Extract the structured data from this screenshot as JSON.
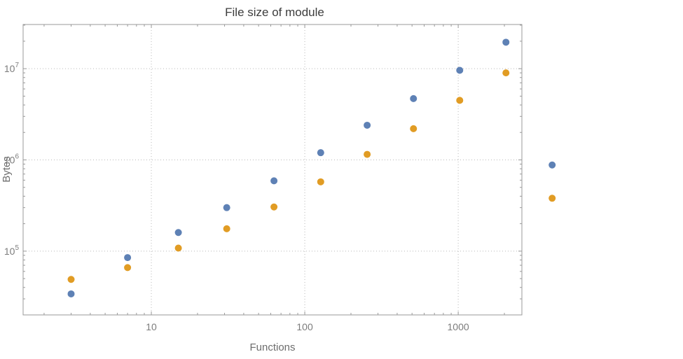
{
  "chart_data": {
    "type": "scatter",
    "title": "File size of module",
    "xlabel": "Functions",
    "ylabel": "Bytes",
    "x_scale": "log",
    "y_scale": "log",
    "grid": true,
    "legend": "none",
    "xlim": [
      1.46,
      2600
    ],
    "ylim": [
      20000,
      30500000
    ],
    "x_ticks": [
      {
        "value": 10,
        "label": "10"
      },
      {
        "value": 100,
        "label": "100"
      },
      {
        "value": 1000,
        "label": "1000"
      }
    ],
    "y_ticks": [
      {
        "value": 100000,
        "base": "10",
        "exp": "5"
      },
      {
        "value": 1000000,
        "base": "10",
        "exp": "6"
      },
      {
        "value": 10000000,
        "base": "10",
        "exp": "7"
      }
    ],
    "x": [
      3,
      7,
      15,
      31,
      63,
      127,
      255,
      511,
      1023,
      2047,
      4095
    ],
    "series": [
      {
        "name": "blue",
        "color": "#5e81b5",
        "values": [
          34000,
          85000,
          160000,
          300000,
          590000,
          1200000,
          2400000,
          4700000,
          9600000,
          19500000,
          880000
        ]
      },
      {
        "name": "orange",
        "color": "#e19c24",
        "values": [
          49000,
          66000,
          108000,
          176000,
          305000,
          575000,
          1150000,
          2200000,
          4500000,
          9000000,
          380000
        ]
      }
    ],
    "colors": {
      "frame": "#999999",
      "grid": "#b9b9b9",
      "tick_label": "#7c7c7c",
      "axis_label": "#6d6d6d",
      "title": "#3c3c3c",
      "background": "#ffffff",
      "series_blue": "#5e81b5",
      "series_orange": "#e19c24"
    }
  }
}
